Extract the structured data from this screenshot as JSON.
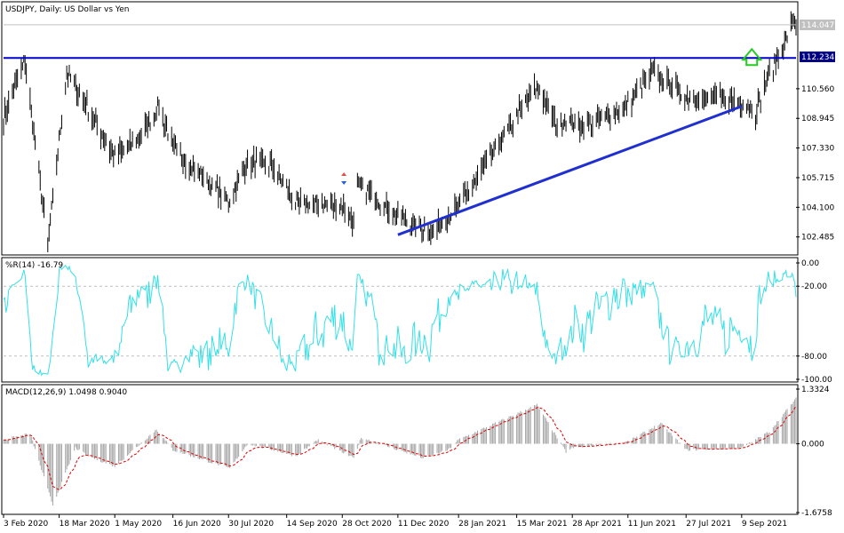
{
  "colors": {
    "background": "#ffffff",
    "frame": "#000000",
    "grid": "#c0c0c0",
    "bars": "#000000",
    "level_line": "#0000cc",
    "trend_line": "#1f2fd0",
    "williams": "#33e0e6",
    "macd_hist": "#a6a6a6",
    "macd_signal": "#e00000",
    "arrow": "#22cc22",
    "price_box": "#000080",
    "current_box": "#c0c0c0"
  },
  "icons": {
    "up_arrow": "up-arrow-icon",
    "trade_marker": "trade-marker-icon"
  },
  "chart_data": [
    {
      "type": "ohlc",
      "title": "USDJPY, Daily:  US Dollar vs Yen",
      "ylim": [
        101.6,
        115.2
      ],
      "y_ticks": [
        "114.047",
        "112.234",
        "110.560",
        "108.945",
        "107.330",
        "105.715",
        "104.100",
        "102.485"
      ],
      "current_price": "114.047",
      "level_label": "112.234",
      "level_value": 112.234,
      "trend_line": {
        "start": [
          "11 Dec 2020",
          102.6
        ],
        "end": [
          "9 Sep 2021",
          109.6
        ]
      },
      "anchors": [
        [
          "3 Feb 2020",
          109.0
        ],
        [
          "20 Feb 2020",
          112.1
        ],
        [
          "9 Mar 2020",
          102.0
        ],
        [
          "24 Mar 2020",
          111.5
        ],
        [
          "1 May 2020",
          106.8
        ],
        [
          "20 May 2020",
          107.9
        ],
        [
          "5 Jun 2020",
          109.6
        ],
        [
          "16 Jun 2020",
          107.3
        ],
        [
          "30 Jul 2020",
          104.4
        ],
        [
          "14 Aug 2020",
          106.6
        ],
        [
          "4 Sep 2020",
          106.3
        ],
        [
          "21 Sep 2020",
          104.3
        ],
        [
          "28 Oct 2020",
          104.2
        ],
        [
          "6 Nov 2020",
          103.3
        ],
        [
          "9 Nov 2020",
          105.4
        ],
        [
          "11 Dec 2020",
          103.6
        ],
        [
          "6 Jan 2021",
          102.7
        ],
        [
          "28 Jan 2021",
          104.1
        ],
        [
          "15 Mar 2021",
          109.1
        ],
        [
          "31 Mar 2021",
          110.7
        ],
        [
          "15 Apr 2021",
          108.7
        ],
        [
          "28 Apr 2021",
          108.8
        ],
        [
          "7 May 2021",
          108.4
        ],
        [
          "11 Jun 2021",
          109.7
        ],
        [
          "1 Jul 2021",
          111.5
        ],
        [
          "27 Jul 2021",
          110.1
        ],
        [
          "9 Sep 2021",
          109.9
        ],
        [
          "20 Sep 2021",
          109.3
        ],
        [
          "30 Sep 2021",
          111.3
        ],
        [
          "8 Oct 2021",
          112.2
        ],
        [
          "20 Oct 2021",
          114.4
        ],
        [
          "22 Oct 2021",
          113.9
        ]
      ]
    },
    {
      "type": "line",
      "title": "%R(14) -16.79",
      "ylim": [
        -100,
        0
      ],
      "y_ticks": [
        "0.00",
        "-20.00",
        "-80.00",
        "-100.00"
      ],
      "levels": [
        -20,
        -80
      ],
      "value": -16.79
    },
    {
      "type": "bar+line",
      "title": "MACD(12,26,9) 1.0498 0.9040",
      "ylim": [
        -1.6758,
        1.3324
      ],
      "y_ticks": [
        "1.3324",
        "0.000",
        "-1.6758"
      ],
      "macd": 1.0498,
      "signal": 0.904,
      "anchors": [
        [
          "3 Feb 2020",
          0.1
        ],
        [
          "24 Feb 2020",
          0.25
        ],
        [
          "13 Mar 2020",
          -1.5
        ],
        [
          "31 Mar 2020",
          -0.1
        ],
        [
          "10 Apr 2020",
          -0.3
        ],
        [
          "1 May 2020",
          -0.55
        ],
        [
          "3 Jun 2020",
          0.35
        ],
        [
          "16 Jun 2020",
          -0.15
        ],
        [
          "31 Jul 2020",
          -0.6
        ],
        [
          "14 Aug 2020",
          0.0
        ],
        [
          "4 Sep 2020",
          -0.15
        ],
        [
          "21 Sep 2020",
          -0.3
        ],
        [
          "9 Oct 2020",
          0.1
        ],
        [
          "6 Nov 2020",
          -0.35
        ],
        [
          "12 Nov 2020",
          0.15
        ],
        [
          "31 Dec 2020",
          -0.35
        ],
        [
          "20 Jan 2021",
          -0.15
        ],
        [
          "28 Jan 2021",
          0.1
        ],
        [
          "31 Mar 2021",
          0.95
        ],
        [
          "23 Apr 2021",
          -0.2
        ],
        [
          "28 Apr 2021",
          -0.1
        ],
        [
          "11 Jun 2021",
          0.05
        ],
        [
          "7 Jul 2021",
          0.5
        ],
        [
          "27 Jul 2021",
          -0.15
        ],
        [
          "9 Sep 2021",
          -0.1
        ],
        [
          "1 Oct 2021",
          0.3
        ],
        [
          "22 Oct 2021",
          1.1
        ]
      ]
    }
  ],
  "x_axis": {
    "labels": [
      "3 Feb 2020",
      "18 Mar 2020",
      "1 May 2020",
      "16 Jun 2020",
      "30 Jul 2020",
      "14 Sep 2020",
      "28 Oct 2020",
      "11 Dec 2020",
      "28 Jan 2021",
      "15 Mar 2021",
      "28 Apr 2021",
      "11 Jun 2021",
      "27 Jul 2021",
      "9 Sep 2021"
    ],
    "start": "3 Feb 2020",
    "end": "22 Oct 2021"
  }
}
